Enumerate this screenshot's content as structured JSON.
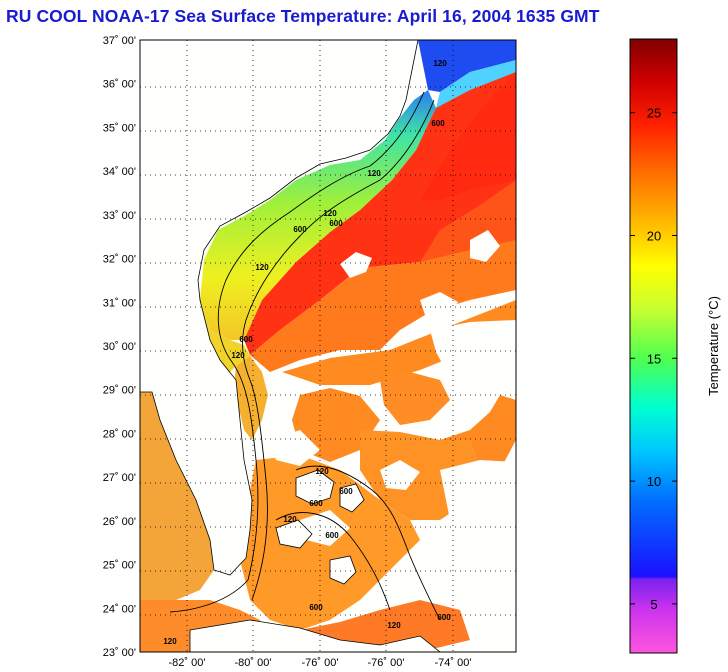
{
  "title": "RU COOL  NOAA-17  Sea Surface Temperature:  April 16, 2004 1635 GMT",
  "map": {
    "lat_labels": [
      "37˚ 00'",
      "36˚ 00'",
      "35˚ 00'",
      "34˚ 00'",
      "33˚ 00'",
      "32˚ 00'",
      "31˚ 00'",
      "30˚ 00'",
      "29˚ 00'",
      "28˚ 00'",
      "27˚ 00'",
      "26˚ 00'",
      "25˚ 00'",
      "24˚ 00'",
      "23˚ 00'"
    ],
    "lon_labels": [
      "-82˚ 00'",
      "-80˚ 00'",
      "-76˚ 00'",
      "-76˚ 00'",
      "-74˚ 00'"
    ],
    "isobath_labels": [
      "120",
      "600",
      "120",
      "600",
      "120",
      "600",
      "120",
      "600",
      "120",
      "120",
      "600",
      "600",
      "120",
      "600",
      "600",
      "120",
      "600",
      "120"
    ]
  },
  "colorbar": {
    "ticks": [
      "25",
      "20",
      "15",
      "10",
      "5"
    ],
    "tick_values": [
      25,
      20,
      15,
      10,
      5
    ],
    "min": 3,
    "max": 28,
    "label": "Temperature (°C)",
    "colors": [
      "#ff55dd",
      "#cc33ee",
      "#7a22ee",
      "#1111ff",
      "#0070ff",
      "#00c8ff",
      "#00ffd0",
      "#50ff50",
      "#c8ff30",
      "#ffff00",
      "#ffb000",
      "#ff7000",
      "#ff2000",
      "#d00000",
      "#800000"
    ]
  }
}
